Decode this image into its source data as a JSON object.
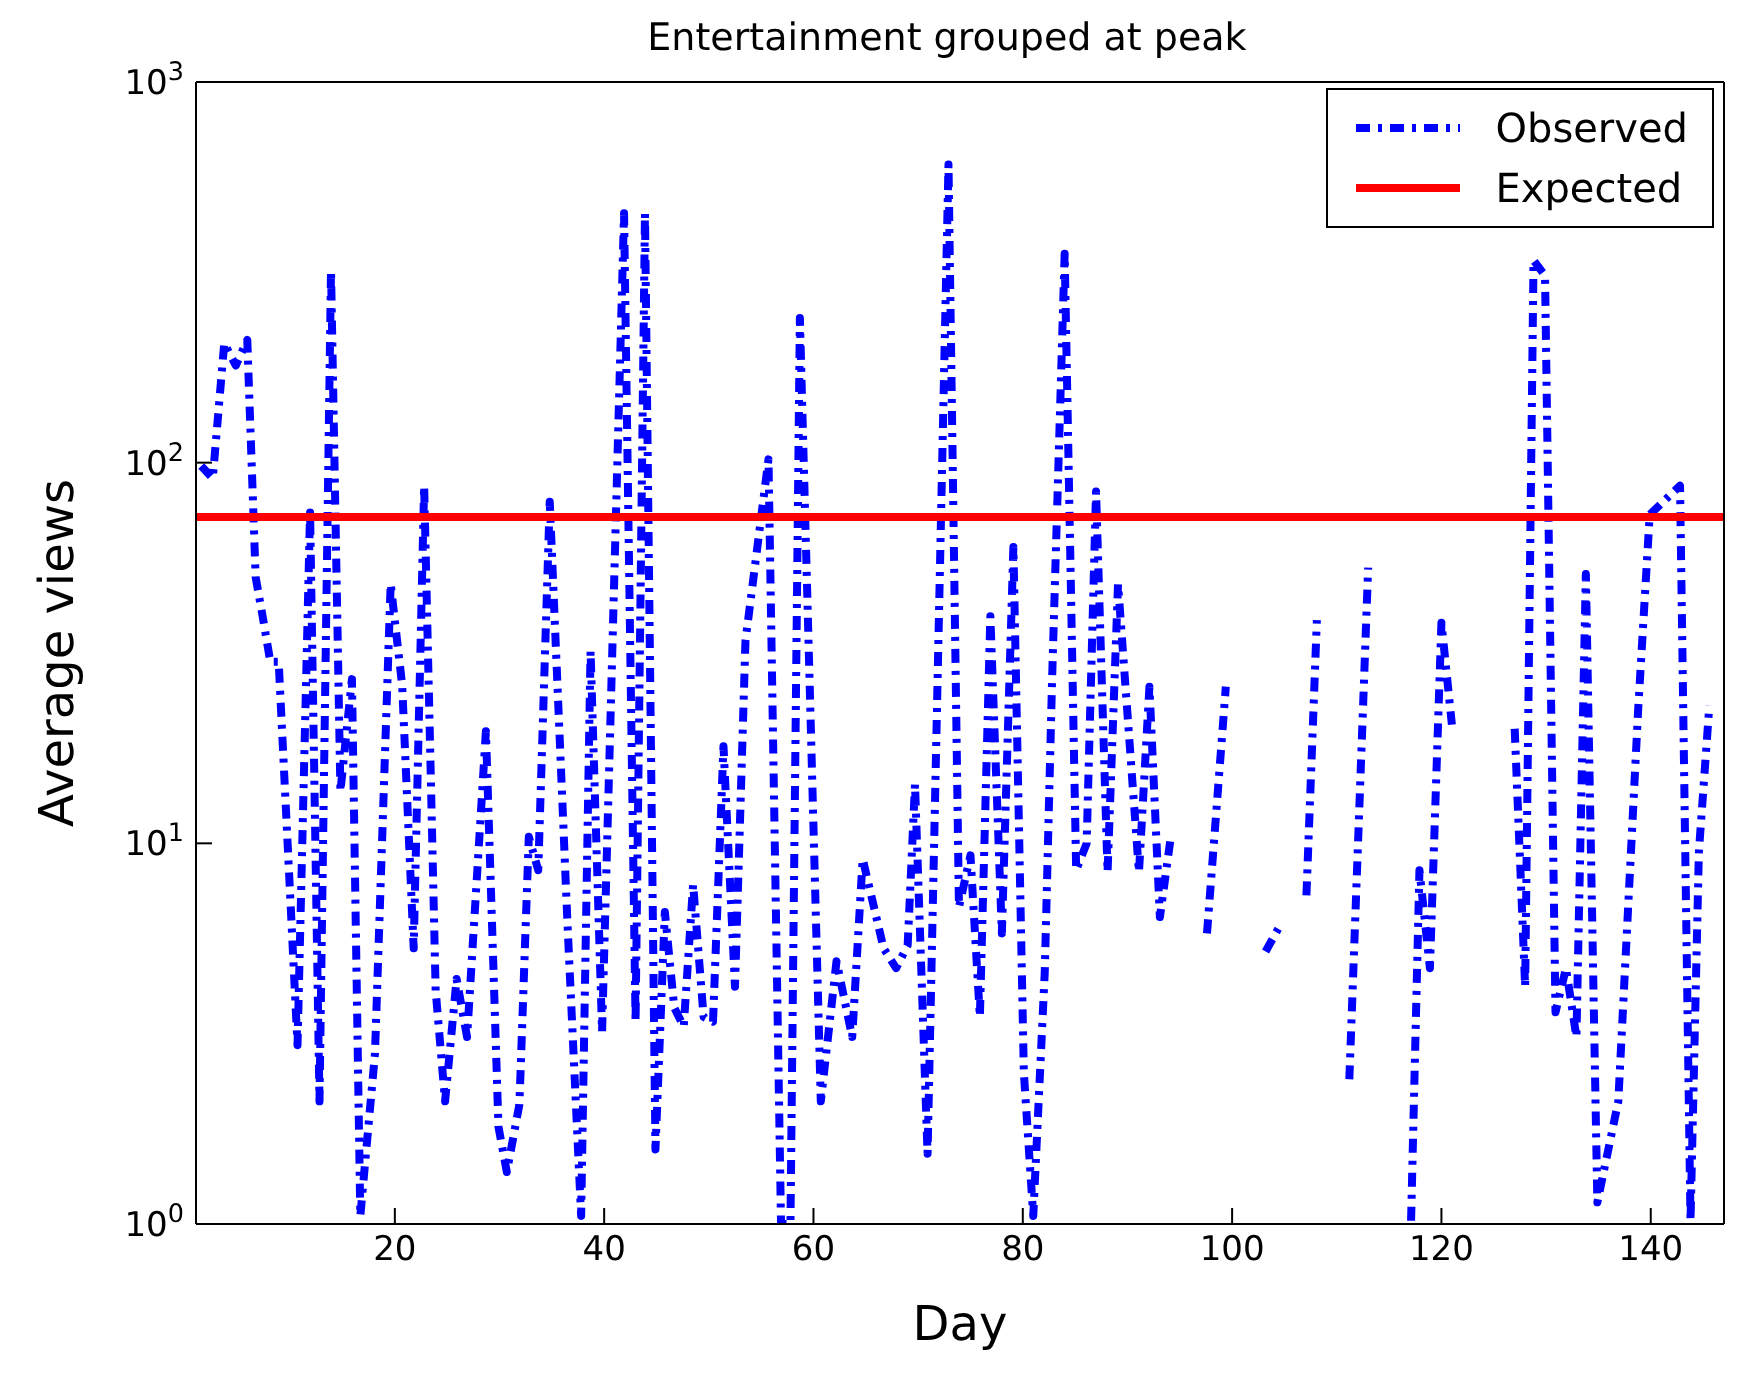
{
  "chart_data": {
    "type": "line",
    "title": "Entertainment grouped at peak",
    "xlabel": "Day",
    "ylabel": "Average views",
    "log": "y",
    "xlim": [
      1,
      147
    ],
    "xticks": [
      20,
      40,
      60,
      80,
      100,
      120,
      140
    ],
    "ylim": [
      1,
      1000
    ],
    "yticks": [
      {
        "value": 1,
        "label": "10$^{0}$"
      },
      {
        "value": 10,
        "label": "10$^{1}$"
      },
      {
        "value": 100,
        "label": "10$^{2}$"
      },
      {
        "value": 1000,
        "label": "10$^{3}$"
      }
    ],
    "legend": "top right",
    "series": [
      {
        "name": "Observed",
        "color": "#0000ff",
        "line_style": "dashed",
        "x": [
          1.5,
          2.6,
          3.7,
          4.8,
          5.9,
          6.7,
          7.4,
          8.1,
          8.9,
          10.7,
          11.9,
          12.8,
          13.9,
          14.8,
          15.9,
          16.7,
          18.1,
          19.6,
          20.7,
          21.8,
          22.8,
          23.9,
          24.8,
          25.9,
          26.9,
          28.7,
          29.9,
          30.7,
          31.9,
          32.8,
          33.7,
          34.8,
          36.5,
          37.8,
          38.7,
          39.8,
          41.9,
          43.0,
          43.9,
          44.9,
          45.8,
          46.7,
          47.6,
          48.5,
          49.5,
          50.4,
          51.4,
          52.5,
          53.5,
          55.7,
          56.9,
          57.8,
          58.7,
          60.7,
          62.2,
          63.7,
          64.7,
          66.7,
          67.9,
          69.0,
          69.7,
          70.9,
          72.9,
          73.9,
          75.0,
          75.9,
          76.9,
          78.0,
          79.1,
          80.1,
          81.0,
          82.1,
          82.8,
          84.0,
          85.1,
          86.1,
          87.0,
          88.1,
          89.1,
          91.1,
          92.1,
          93.1,
          94.1,
          95.8,
          97.6,
          99.4,
          101.3,
          103.2,
          104.6,
          105.9,
          107.1,
          108.1,
          109.6,
          111.2,
          113.0,
          115.0,
          117.1,
          117.9,
          118.9,
          120.0,
          121.0,
          124.0,
          127.0,
          128.0,
          128.8,
          129.9,
          130.9,
          131.9,
          132.9,
          133.8,
          134.9,
          136.9,
          138.8,
          139.9,
          141.0,
          142.8,
          143.8,
          144.6,
          145.6
        ],
        "values": [
          98,
          91,
          206,
          180,
          210,
          50,
          39,
          30,
          30,
          2.95,
          74,
          2.1,
          320,
          13.7,
          27,
          1.05,
          2.8,
          48,
          26,
          5.3,
          87,
          4.1,
          2.1,
          4.4,
          3.1,
          19.7,
          1.8,
          1.37,
          2.06,
          10.4,
          8.5,
          79,
          6.1,
          1.05,
          32,
          3.2,
          452,
          3.4,
          452,
          1.57,
          6.6,
          3.7,
          3.3,
          7.8,
          3.5,
          3.4,
          18,
          4.2,
          34,
          102,
          1.0,
          1.0,
          240,
          2.1,
          4.9,
          3.1,
          9.1,
          5.3,
          4.7,
          5.4,
          14.3,
          1.53,
          607,
          6.8,
          9.3,
          3.5,
          39.5,
          5.8,
          60,
          2.5,
          1.05,
          4.6,
          27,
          354,
          8.5,
          10,
          84,
          8.4,
          48,
          8.4,
          25.8,
          6.4,
          10.2,
          null,
          5.8,
          25.8,
          null,
          5.2,
          6.1,
          null,
          7.3,
          38.6,
          null,
          2.4,
          53,
          null,
          1.02,
          8.5,
          4.7,
          38,
          20.5,
          null,
          20,
          4.2,
          340,
          310,
          3.6,
          4.7,
          3.1,
          51,
          1.14,
          2.1,
          22.5,
          73,
          78,
          87,
          1.02,
          9.5,
          23
        ]
      },
      {
        "name": "Expected",
        "color": "#ff0000",
        "line_style": "solid",
        "x": [
          1,
          147
        ],
        "values": [
          72,
          72
        ]
      }
    ]
  }
}
